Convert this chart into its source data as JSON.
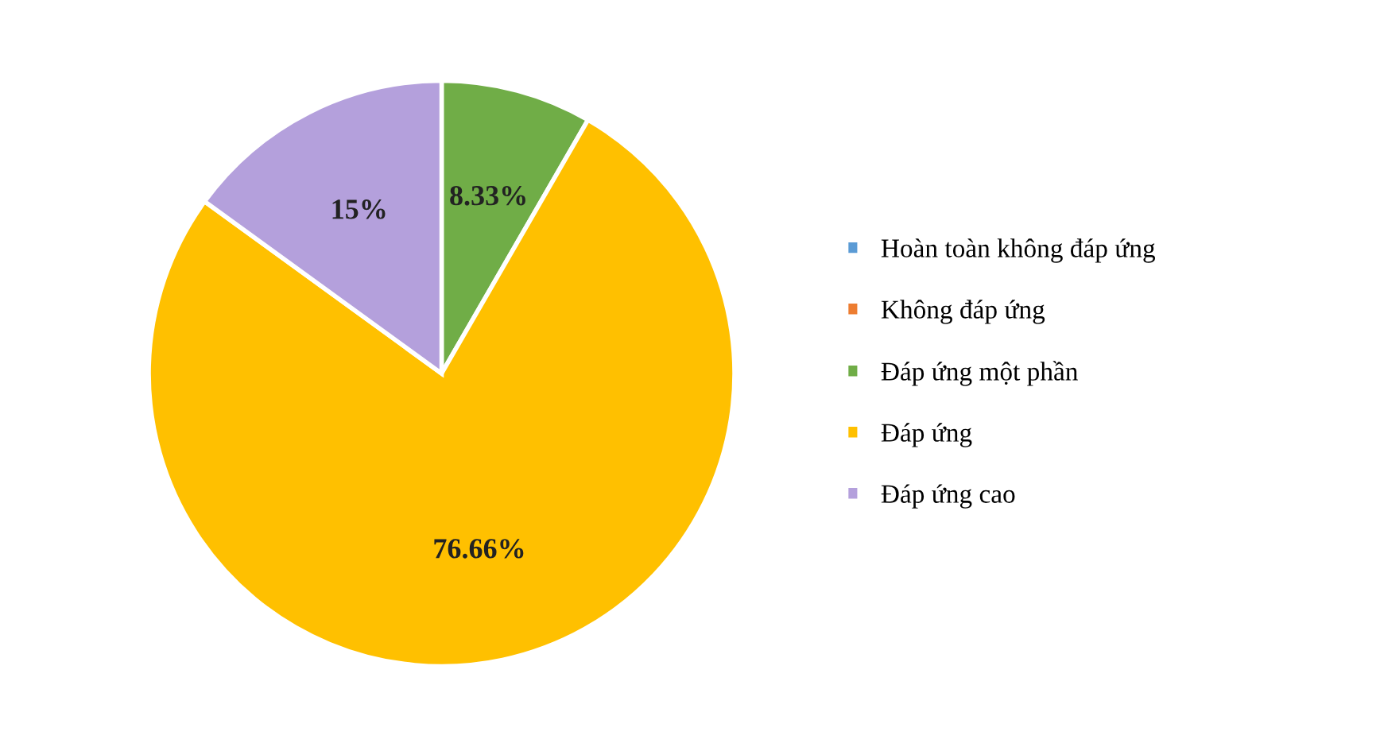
{
  "chart_data": {
    "type": "pie",
    "categories": [
      "Hoàn toàn không đáp ứng",
      "Không đáp ứng",
      "Đáp ứng một phần",
      "Đáp ứng",
      "Đáp ứng cao"
    ],
    "values": [
      0,
      0,
      8.33,
      76.66,
      15
    ],
    "colors": [
      "#5b9bd5",
      "#ed7d31",
      "#70ad47",
      "#ffc000",
      "#b4a0dc"
    ],
    "value_labels": [
      null,
      null,
      "8.33%",
      "76.66%",
      "15%"
    ],
    "legend": "right"
  }
}
